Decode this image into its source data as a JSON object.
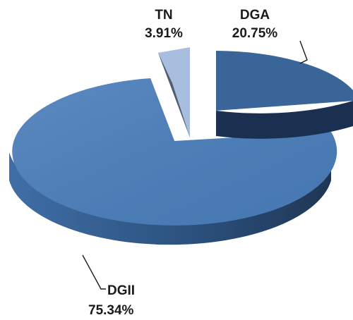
{
  "chart_data": {
    "type": "pie",
    "style": "3d-exploded",
    "slices": [
      {
        "label": "DGA",
        "value": 20.75,
        "value_label": "20.75%",
        "color": "#3a6599"
      },
      {
        "label": "DGII",
        "value": 75.34,
        "value_label": "75.34%",
        "color": "#4a7ebb"
      },
      {
        "label": "TN",
        "value": 3.91,
        "value_label": "3.91%",
        "color": "#a9bddf"
      }
    ],
    "legend": "none",
    "data_labels": "outside with leader lines"
  }
}
